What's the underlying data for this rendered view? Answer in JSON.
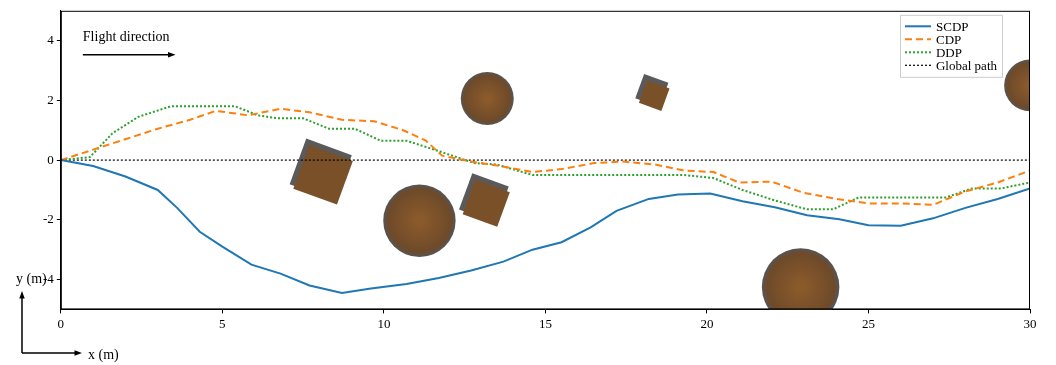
{
  "chart_data": {
    "type": "line",
    "xlabel": "x (m)",
    "ylabel": "y (m)",
    "annotation": "Flight direction",
    "xlim": [
      0,
      30
    ],
    "xticks": [
      0,
      5,
      10,
      15,
      20,
      25,
      30
    ],
    "ylim": [
      -5,
      5
    ],
    "yticks": [
      -4,
      -2,
      0,
      2,
      4
    ],
    "grid": false,
    "legend": "upper right",
    "series": [
      {
        "name": "SCDP",
        "color": "#1f77b4",
        "line_style": "solid",
        "x": [
          0,
          1,
          2,
          3,
          3.6,
          4.3,
          5,
          5.9,
          6.8,
          7.7,
          8.7,
          9.6,
          10.7,
          11.7,
          12.7,
          13.7,
          14.6,
          15.5,
          16.4,
          17.2,
          18.2,
          19.1,
          20.1,
          21.1,
          22.1,
          23.1,
          24.1,
          25,
          26,
          27,
          28,
          29,
          30
        ],
        "values": [
          0,
          -0.2,
          -0.55,
          -1.0,
          -1.6,
          -2.4,
          -2.9,
          -3.5,
          -3.8,
          -4.2,
          -4.45,
          -4.3,
          -4.15,
          -3.95,
          -3.7,
          -3.4,
          -3.0,
          -2.75,
          -2.25,
          -1.7,
          -1.3,
          -1.15,
          -1.12,
          -1.38,
          -1.58,
          -1.85,
          -1.98,
          -2.18,
          -2.2,
          -1.95,
          -1.6,
          -1.3,
          -0.95
        ]
      },
      {
        "name": "CDP",
        "color": "#ff7f0e",
        "line_style": "dashed",
        "x": [
          0,
          1,
          2,
          3,
          4,
          4.8,
          5.8,
          6.8,
          7.7,
          8.7,
          9.7,
          10.6,
          11.3,
          11.8,
          12.7,
          13.6,
          14.6,
          15.5,
          16.5,
          17.4,
          18.4,
          19.3,
          20.2,
          21,
          22,
          23,
          24,
          25,
          26,
          27,
          28,
          29,
          30
        ],
        "values": [
          0,
          0.35,
          0.7,
          1.05,
          1.35,
          1.65,
          1.5,
          1.72,
          1.6,
          1.35,
          1.3,
          1.0,
          0.65,
          0.15,
          -0.05,
          -0.2,
          -0.4,
          -0.3,
          -0.1,
          -0.05,
          -0.15,
          -0.35,
          -0.4,
          -0.75,
          -0.72,
          -1.1,
          -1.3,
          -1.45,
          -1.45,
          -1.5,
          -1.05,
          -0.75,
          -0.35
        ]
      },
      {
        "name": "DDP",
        "color": "#2ca02c",
        "line_style": "dotted",
        "x": [
          0,
          0.9,
          1.6,
          2.4,
          3.4,
          4.3,
          5.4,
          6.1,
          6.7,
          7.5,
          8.3,
          9.1,
          9.9,
          10.7,
          11.7,
          12.8,
          13.5,
          14.6,
          15.5,
          16.5,
          17.4,
          18.4,
          19.3,
          20.2,
          21.1,
          22.1,
          23.1,
          23.9,
          24.7,
          25.6,
          26.5,
          27.4,
          28.2,
          29.1,
          30
        ],
        "values": [
          0,
          0.1,
          0.9,
          1.45,
          1.8,
          1.8,
          1.8,
          1.5,
          1.4,
          1.4,
          1.05,
          1.05,
          0.65,
          0.65,
          0.3,
          -0.1,
          -0.15,
          -0.5,
          -0.5,
          -0.5,
          -0.5,
          -0.5,
          -0.5,
          -0.6,
          -1.0,
          -1.35,
          -1.65,
          -1.65,
          -1.25,
          -1.25,
          -1.25,
          -1.25,
          -0.95,
          -0.95,
          -0.75
        ]
      },
      {
        "name": "Global path",
        "color": "#000000",
        "line_style": "dotted",
        "x": [
          0,
          30
        ],
        "values": [
          0,
          0
        ]
      }
    ],
    "obstacles": [
      {
        "shape": "circle",
        "x": 13.2,
        "y": 2.06,
        "r": 0.82
      },
      {
        "shape": "square",
        "x": 18.35,
        "y": 2.2,
        "size": 0.8
      },
      {
        "shape": "square",
        "x": 8.1,
        "y": -0.45,
        "size": 1.5
      },
      {
        "shape": "circle",
        "x": 11.1,
        "y": -2.03,
        "r": 1.12
      },
      {
        "shape": "square",
        "x": 13.15,
        "y": -1.4,
        "size": 1.2
      },
      {
        "shape": "circle",
        "x": 22.9,
        "y": -4.25,
        "r": 1.2
      },
      {
        "shape": "circle",
        "x": 30,
        "y": 2.5,
        "r": 0.8
      }
    ]
  }
}
